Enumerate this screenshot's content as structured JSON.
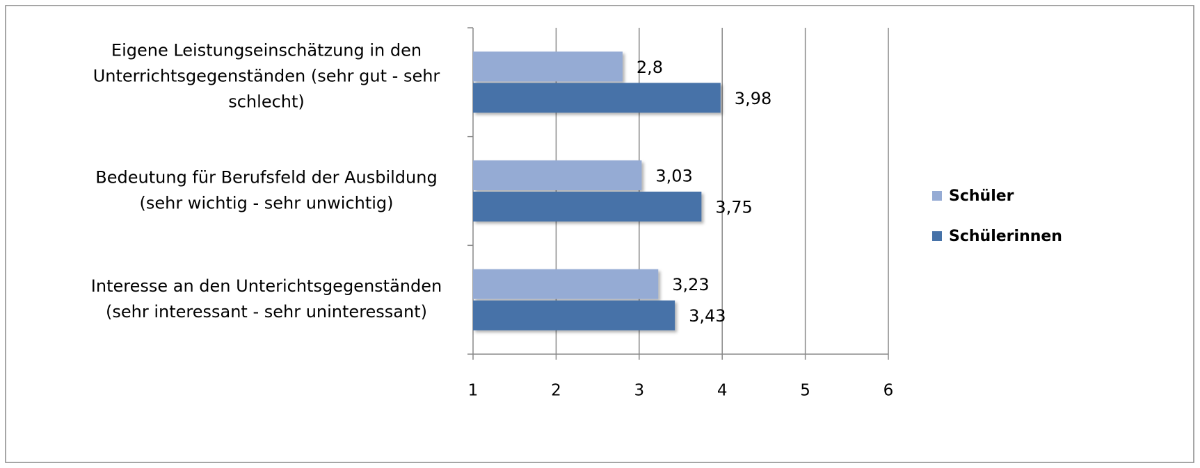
{
  "chart_data": {
    "type": "bar",
    "orientation": "horizontal",
    "categories": [
      "Eigene Leistungseinschätzung in den Unterrichtsgegenständen (sehr gut - sehr schlecht)",
      "Bedeutung für Berufsfeld der Ausbildung (sehr wichtig - sehr unwichtig)",
      "Interesse an den Unterichtsgegenständen (sehr interessant - sehr uninteressant)"
    ],
    "series": [
      {
        "name": "Schüler",
        "color": "#95abd4",
        "values": [
          2.8,
          3.03,
          3.23
        ],
        "value_labels": [
          "2,8",
          "3,03",
          "3,23"
        ]
      },
      {
        "name": "Schülerinnen",
        "color": "#4672a8",
        "values": [
          3.98,
          3.75,
          3.43
        ],
        "value_labels": [
          "3,98",
          "3,75",
          "3,43"
        ]
      }
    ],
    "xlim": [
      1,
      6
    ],
    "xticks": [
      1,
      2,
      3,
      4,
      5,
      6
    ],
    "grid": true,
    "legend": "right"
  }
}
